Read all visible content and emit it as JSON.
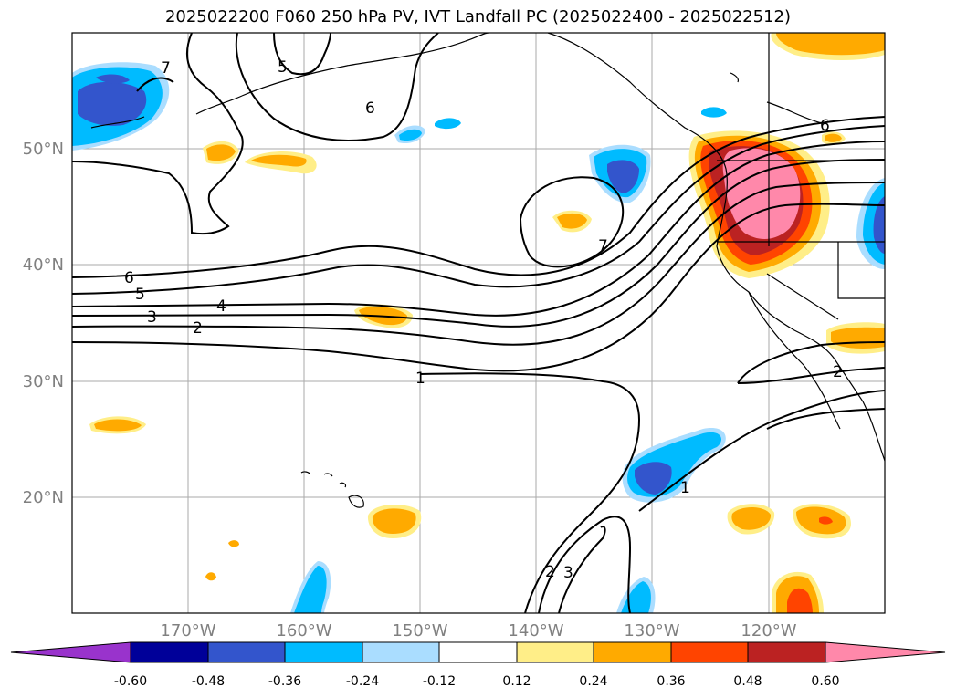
{
  "title": "2025022200 F060 250 hPa PV, IVT Landfall PC (2025022400 - 2025022512)",
  "axes": {
    "lat_labels": [
      "50°N",
      "40°N",
      "30°N",
      "20°N"
    ],
    "lon_labels": [
      "170°W",
      "160°W",
      "150°W",
      "140°W",
      "130°W",
      "120°W"
    ],
    "lat_range": [
      10,
      60
    ],
    "lon_range": [
      -180,
      -110
    ],
    "grid": true
  },
  "contour_labels": [
    "7",
    "5",
    "6",
    "6",
    "7",
    "6",
    "5",
    "4",
    "3",
    "2",
    "1",
    "2",
    "3",
    "1",
    "2"
  ],
  "colorbar": {
    "ticks": [
      "-0.60",
      "-0.48",
      "-0.36",
      "-0.24",
      "-0.12",
      "0.12",
      "0.24",
      "0.36",
      "0.48",
      "0.60"
    ],
    "colors": [
      "#9933cc",
      "#000099",
      "#3355cc",
      "#00bbff",
      "#aaddff",
      "#ffffff",
      "#ffee88",
      "#ffaa00",
      "#ff4400",
      "#bb2222",
      "#ff88aa"
    ],
    "extend": "both"
  }
}
